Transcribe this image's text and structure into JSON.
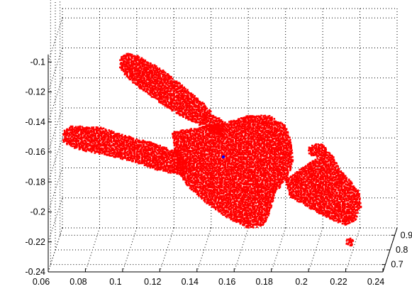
{
  "chart_data": {
    "type": "scatter",
    "projection": "3d",
    "title": "",
    "xlabel": "",
    "ylabel": "",
    "zlabel": "",
    "grid": true,
    "x_axis": {
      "ticks": [
        0.06,
        0.08,
        0.1,
        0.12,
        0.14,
        0.16,
        0.18,
        0.2,
        0.22,
        0.24
      ],
      "tick_labels": [
        "0.06",
        "0.08",
        "0.1",
        "0.12",
        "0.14",
        "0.16",
        "0.18",
        "0.2",
        "0.22",
        "0.24"
      ],
      "range": [
        0.06,
        0.24
      ]
    },
    "y_axis": {
      "ticks": [
        0.7,
        0.8,
        0.9
      ],
      "tick_labels": [
        "0.7",
        "0.8",
        "0.9"
      ],
      "range": [
        0.65,
        0.95
      ]
    },
    "z_axis": {
      "ticks": [
        -0.24,
        -0.22,
        -0.2,
        -0.18,
        -0.16,
        -0.14,
        -0.12,
        -0.1
      ],
      "tick_labels": [
        "-0.24",
        "-0.22",
        "-0.2",
        "-0.18",
        "-0.16",
        "-0.14",
        "-0.12",
        "-0.1"
      ],
      "range": [
        -0.24,
        -0.08
      ]
    },
    "series": [
      {
        "marker_color": "#ff0000",
        "marker": "dot",
        "description_regions": [
          {
            "x_range": [
              0.095,
              0.165
            ],
            "z_range": [
              -0.175,
              -0.095
            ]
          },
          {
            "x_range": [
              0.06,
              0.17
            ],
            "z_range": [
              -0.17,
              -0.145
            ]
          },
          {
            "x_range": [
              0.15,
              0.205
            ],
            "z_range": [
              -0.205,
              -0.14
            ]
          },
          {
            "x_range": [
              0.2,
              0.235
            ],
            "z_range": [
              -0.2,
              -0.155
            ]
          },
          {
            "x_range": [
              0.231,
              0.234
            ],
            "z_range": [
              -0.222,
              -0.218
            ]
          }
        ]
      },
      {
        "marker_color": "#0000ff",
        "marker": "dot",
        "points": [
          {
            "x": 0.165,
            "z": -0.161
          }
        ]
      }
    ]
  }
}
